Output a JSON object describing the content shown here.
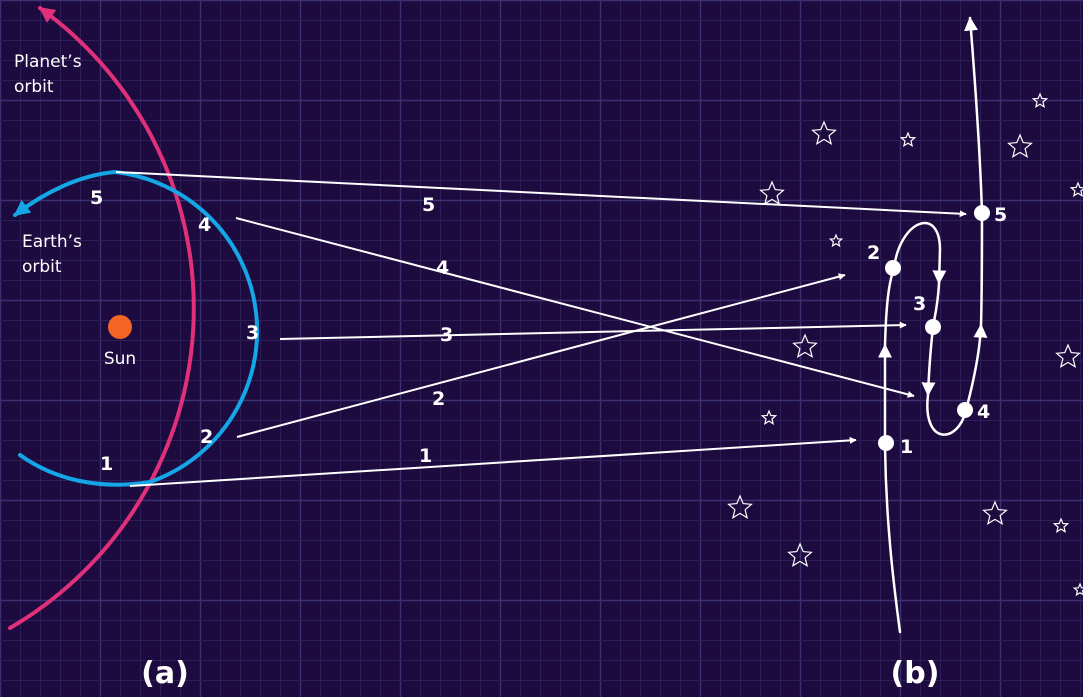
{
  "colors": {
    "background": "#1d0b3f",
    "grid_minor": "#2c1f58",
    "grid_major": "#3c3170",
    "planet_orbit": "#e0307a",
    "earth_orbit": "#14a6e6",
    "sun": "#f26522",
    "sight_lines": "#ffffff"
  },
  "labels": {
    "planet_orbit": [
      "Planet’s",
      "orbit"
    ],
    "earth_orbit": [
      "Earth’s",
      "orbit"
    ],
    "sun": "Sun",
    "panel_a": "(a)",
    "panel_b": "(b)"
  },
  "positions": {
    "earth": [
      "1",
      "2",
      "3",
      "4",
      "5"
    ],
    "planet": [
      "1",
      "2",
      "3",
      "4",
      "5"
    ],
    "sky": [
      "1",
      "2",
      "3",
      "4",
      "5"
    ]
  },
  "icons": {
    "star": "star-outline-icon"
  }
}
